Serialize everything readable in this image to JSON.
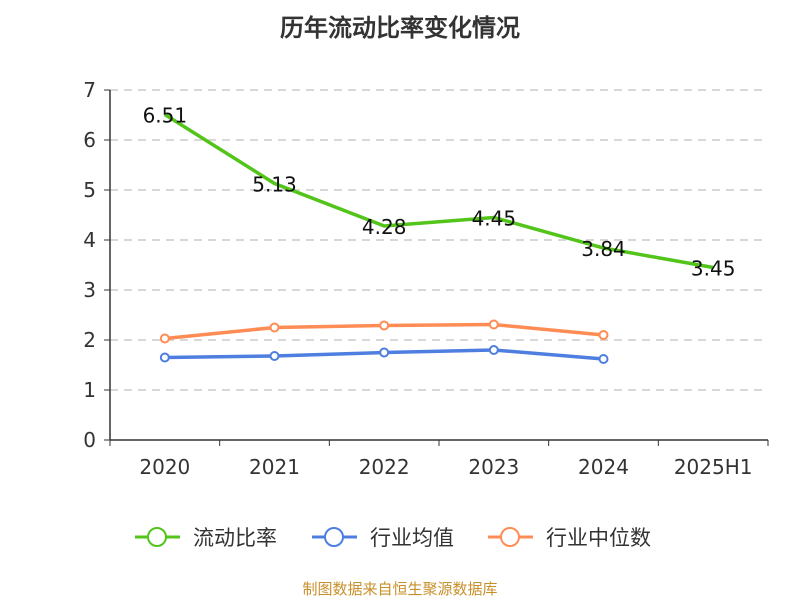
{
  "title": "历年流动比率变化情况",
  "source": "制图数据来自恒生聚源数据库",
  "chart_data": {
    "type": "line",
    "title": "历年流动比率变化情况",
    "categories": [
      "2020",
      "2021",
      "2022",
      "2023",
      "2024",
      "2025H1"
    ],
    "ylim": [
      0,
      7
    ],
    "yticks": [
      0,
      1,
      2,
      3,
      4,
      5,
      6,
      7
    ],
    "grid": "horizontal dashed",
    "legend": "bottom",
    "series": [
      {
        "name": "流动比率",
        "color": "#52c41a",
        "values": [
          6.51,
          5.13,
          4.28,
          4.45,
          3.84,
          3.45
        ],
        "labels": [
          "6.51",
          "5.13",
          "4.28",
          "4.45",
          "3.84",
          "3.45"
        ]
      },
      {
        "name": "行业均值",
        "color": "#4e7fe0",
        "values": [
          1.65,
          1.68,
          1.75,
          1.8,
          1.62,
          null
        ]
      },
      {
        "name": "行业中位数",
        "color": "#ff8c55",
        "values": [
          2.03,
          2.25,
          2.29,
          2.31,
          2.1,
          null
        ]
      }
    ]
  }
}
